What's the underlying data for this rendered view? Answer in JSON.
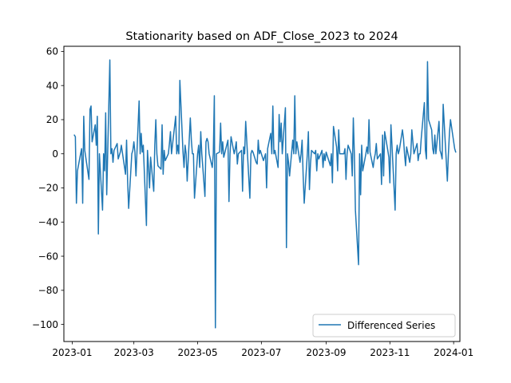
{
  "chart_data": {
    "type": "line",
    "title": "Stationarity based on ADF_Close_2023 to 2024",
    "xlabel": "",
    "ylabel": "",
    "x_range": [
      "2022-12-24",
      "2024-01-07"
    ],
    "ylim": [
      -110,
      63
    ],
    "x_ticks": [
      {
        "date": "2023-01-01",
        "label": "2023-01"
      },
      {
        "date": "2023-03-01",
        "label": "2023-03"
      },
      {
        "date": "2023-05-01",
        "label": "2023-05"
      },
      {
        "date": "2023-07-01",
        "label": "2023-07"
      },
      {
        "date": "2023-09-01",
        "label": "2023-09"
      },
      {
        "date": "2023-11-01",
        "label": "2023-11"
      },
      {
        "date": "2024-01-01",
        "label": "2024-01"
      }
    ],
    "y_ticks": [
      {
        "value": 60,
        "label": "60"
      },
      {
        "value": 40,
        "label": "40"
      },
      {
        "value": 20,
        "label": "20"
      },
      {
        "value": 0,
        "label": "0"
      },
      {
        "value": -20,
        "label": "−20"
      },
      {
        "value": -40,
        "label": "−40"
      },
      {
        "value": -60,
        "label": "−60"
      },
      {
        "value": -80,
        "label": "−80"
      },
      {
        "value": -100,
        "label": "−100"
      }
    ],
    "grid": false,
    "legend_position": "lower-right",
    "series": [
      {
        "name": "Differenced Series",
        "color": "#1f77b4",
        "points": [
          [
            "2023-01-03",
            11
          ],
          [
            "2023-01-04",
            10
          ],
          [
            "2023-01-05",
            -29
          ],
          [
            "2023-01-06",
            -10
          ],
          [
            "2023-01-09",
            0
          ],
          [
            "2023-01-10",
            3
          ],
          [
            "2023-01-11",
            -29
          ],
          [
            "2023-01-12",
            22
          ],
          [
            "2023-01-13",
            2
          ],
          [
            "2023-01-17",
            -15
          ],
          [
            "2023-01-18",
            26
          ],
          [
            "2023-01-19",
            28
          ],
          [
            "2023-01-20",
            7
          ],
          [
            "2023-01-23",
            17
          ],
          [
            "2023-01-24",
            5
          ],
          [
            "2023-01-25",
            22
          ],
          [
            "2023-01-26",
            -47
          ],
          [
            "2023-01-27",
            0
          ],
          [
            "2023-01-30",
            -33
          ],
          [
            "2023-01-31",
            0
          ],
          [
            "2023-02-01",
            -10
          ],
          [
            "2023-02-02",
            24
          ],
          [
            "2023-02-03",
            -24
          ],
          [
            "2023-02-06",
            55
          ],
          [
            "2023-02-07",
            0
          ],
          [
            "2023-02-08",
            3
          ],
          [
            "2023-02-09",
            -5
          ],
          [
            "2023-02-10",
            2
          ],
          [
            "2023-02-13",
            6
          ],
          [
            "2023-02-14",
            -3
          ],
          [
            "2023-02-15",
            -1
          ],
          [
            "2023-02-16",
            1
          ],
          [
            "2023-02-17",
            5
          ],
          [
            "2023-02-21",
            -12
          ],
          [
            "2023-02-22",
            8
          ],
          [
            "2023-02-23",
            -16
          ],
          [
            "2023-02-24",
            -32
          ],
          [
            "2023-02-27",
            0
          ],
          [
            "2023-02-28",
            2
          ],
          [
            "2023-03-01",
            7
          ],
          [
            "2023-03-02",
            1
          ],
          [
            "2023-03-03",
            -13
          ],
          [
            "2023-03-06",
            31
          ],
          [
            "2023-03-07",
            0
          ],
          [
            "2023-03-08",
            12
          ],
          [
            "2023-03-09",
            1
          ],
          [
            "2023-03-10",
            5
          ],
          [
            "2023-03-13",
            -42
          ],
          [
            "2023-03-14",
            2
          ],
          [
            "2023-03-15",
            -8
          ],
          [
            "2023-03-16",
            -20
          ],
          [
            "2023-03-17",
            -2
          ],
          [
            "2023-03-20",
            -22
          ],
          [
            "2023-03-21",
            5
          ],
          [
            "2023-03-22",
            20
          ],
          [
            "2023-03-23",
            0
          ],
          [
            "2023-03-24",
            -7
          ],
          [
            "2023-03-27",
            -9
          ],
          [
            "2023-03-28",
            17
          ],
          [
            "2023-03-29",
            -12
          ],
          [
            "2023-03-30",
            2
          ],
          [
            "2023-03-31",
            -4
          ],
          [
            "2023-04-03",
            0
          ],
          [
            "2023-04-04",
            6
          ],
          [
            "2023-04-05",
            13
          ],
          [
            "2023-04-06",
            0
          ],
          [
            "2023-04-10",
            22
          ],
          [
            "2023-04-11",
            0
          ],
          [
            "2023-04-12",
            5
          ],
          [
            "2023-04-13",
            0
          ],
          [
            "2023-04-14",
            43
          ],
          [
            "2023-04-17",
            1
          ],
          [
            "2023-04-18",
            -8
          ],
          [
            "2023-04-19",
            5
          ],
          [
            "2023-04-20",
            0
          ],
          [
            "2023-04-21",
            -16
          ],
          [
            "2023-04-24",
            21
          ],
          [
            "2023-04-25",
            8
          ],
          [
            "2023-04-26",
            0
          ],
          [
            "2023-04-27",
            0
          ],
          [
            "2023-04-28",
            -26
          ],
          [
            "2023-05-01",
            0
          ],
          [
            "2023-05-02",
            5
          ],
          [
            "2023-05-03",
            -8
          ],
          [
            "2023-05-04",
            13
          ],
          [
            "2023-05-05",
            0
          ],
          [
            "2023-05-08",
            -25
          ],
          [
            "2023-05-09",
            7
          ],
          [
            "2023-05-10",
            9
          ],
          [
            "2023-05-11",
            7
          ],
          [
            "2023-05-12",
            0
          ],
          [
            "2023-05-15",
            -8
          ],
          [
            "2023-05-16",
            0
          ],
          [
            "2023-05-17",
            34
          ],
          [
            "2023-05-18",
            -102
          ],
          [
            "2023-05-19",
            0
          ],
          [
            "2023-05-22",
            1
          ],
          [
            "2023-05-23",
            18
          ],
          [
            "2023-05-24",
            0
          ],
          [
            "2023-05-25",
            7
          ],
          [
            "2023-05-26",
            -2
          ],
          [
            "2023-05-30",
            8
          ],
          [
            "2023-05-31",
            -28
          ],
          [
            "2023-06-01",
            0
          ],
          [
            "2023-06-02",
            10
          ],
          [
            "2023-06-05",
            0
          ],
          [
            "2023-06-06",
            3
          ],
          [
            "2023-06-07",
            7
          ],
          [
            "2023-06-08",
            -6
          ],
          [
            "2023-06-09",
            0
          ],
          [
            "2023-06-12",
            2
          ],
          [
            "2023-06-13",
            -22
          ],
          [
            "2023-06-14",
            4
          ],
          [
            "2023-06-15",
            0
          ],
          [
            "2023-06-16",
            19
          ],
          [
            "2023-06-20",
            -26
          ],
          [
            "2023-06-21",
            0
          ],
          [
            "2023-06-22",
            2
          ],
          [
            "2023-06-23",
            1
          ],
          [
            "2023-06-26",
            -5
          ],
          [
            "2023-06-27",
            -6
          ],
          [
            "2023-06-28",
            8
          ],
          [
            "2023-06-29",
            0
          ],
          [
            "2023-06-30",
            2
          ],
          [
            "2023-07-03",
            -4
          ],
          [
            "2023-07-05",
            0
          ],
          [
            "2023-07-06",
            -20
          ],
          [
            "2023-07-07",
            3
          ],
          [
            "2023-07-10",
            12
          ],
          [
            "2023-07-11",
            0
          ],
          [
            "2023-07-12",
            28
          ],
          [
            "2023-07-13",
            0
          ],
          [
            "2023-07-14",
            2
          ],
          [
            "2023-07-17",
            -8
          ],
          [
            "2023-07-18",
            23
          ],
          [
            "2023-07-19",
            7
          ],
          [
            "2023-07-20",
            18
          ],
          [
            "2023-07-21",
            0
          ],
          [
            "2023-07-24",
            27
          ],
          [
            "2023-07-25",
            -55
          ],
          [
            "2023-07-26",
            0
          ],
          [
            "2023-07-27",
            -5
          ],
          [
            "2023-07-28",
            -13
          ],
          [
            "2023-07-31",
            8
          ],
          [
            "2023-08-01",
            0
          ],
          [
            "2023-08-02",
            34
          ],
          [
            "2023-08-03",
            0
          ],
          [
            "2023-08-04",
            7
          ],
          [
            "2023-08-07",
            -5
          ],
          [
            "2023-08-08",
            0
          ],
          [
            "2023-08-09",
            8
          ],
          [
            "2023-08-10",
            -13
          ],
          [
            "2023-08-11",
            -29
          ],
          [
            "2023-08-14",
            0
          ],
          [
            "2023-08-15",
            13
          ],
          [
            "2023-08-16",
            -21
          ],
          [
            "2023-08-17",
            -6
          ],
          [
            "2023-08-18",
            2
          ],
          [
            "2023-08-21",
            0
          ],
          [
            "2023-08-22",
            2
          ],
          [
            "2023-08-23",
            -10
          ],
          [
            "2023-08-24",
            0
          ],
          [
            "2023-08-25",
            -3
          ],
          [
            "2023-08-28",
            2
          ],
          [
            "2023-08-29",
            -8
          ],
          [
            "2023-08-30",
            0
          ],
          [
            "2023-08-31",
            -4
          ],
          [
            "2023-09-01",
            1
          ],
          [
            "2023-09-05",
            -7
          ],
          [
            "2023-09-06",
            0
          ],
          [
            "2023-09-07",
            -17
          ],
          [
            "2023-09-08",
            16
          ],
          [
            "2023-09-11",
            4
          ],
          [
            "2023-09-12",
            -10
          ],
          [
            "2023-09-13",
            14
          ],
          [
            "2023-09-14",
            0
          ],
          [
            "2023-09-15",
            0
          ],
          [
            "2023-09-18",
            0
          ],
          [
            "2023-09-19",
            3
          ],
          [
            "2023-09-20",
            -15
          ],
          [
            "2023-09-21",
            0
          ],
          [
            "2023-09-22",
            5
          ],
          [
            "2023-09-25",
            0
          ],
          [
            "2023-09-26",
            -13
          ],
          [
            "2023-09-27",
            21
          ],
          [
            "2023-09-28",
            0
          ],
          [
            "2023-09-29",
            -33
          ],
          [
            "2023-10-02",
            -65
          ],
          [
            "2023-10-03",
            0
          ],
          [
            "2023-10-04",
            -24
          ],
          [
            "2023-10-05",
            5
          ],
          [
            "2023-10-06",
            -10
          ],
          [
            "2023-10-09",
            0
          ],
          [
            "2023-10-10",
            4
          ],
          [
            "2023-10-11",
            0
          ],
          [
            "2023-10-12",
            20
          ],
          [
            "2023-10-13",
            1
          ],
          [
            "2023-10-16",
            -8
          ],
          [
            "2023-10-17",
            -3
          ],
          [
            "2023-10-18",
            0
          ],
          [
            "2023-10-19",
            6
          ],
          [
            "2023-10-20",
            -3
          ],
          [
            "2023-10-23",
            0
          ],
          [
            "2023-10-24",
            -18
          ],
          [
            "2023-10-25",
            11
          ],
          [
            "2023-10-26",
            -13
          ],
          [
            "2023-10-27",
            13
          ],
          [
            "2023-10-30",
            2
          ],
          [
            "2023-10-31",
            -2
          ],
          [
            "2023-11-01",
            -17
          ],
          [
            "2023-11-02",
            17
          ],
          [
            "2023-11-03",
            5
          ],
          [
            "2023-11-06",
            -33
          ],
          [
            "2023-11-07",
            0
          ],
          [
            "2023-11-08",
            5
          ],
          [
            "2023-11-09",
            0
          ],
          [
            "2023-11-10",
            2
          ],
          [
            "2023-11-13",
            14
          ],
          [
            "2023-11-14",
            9
          ],
          [
            "2023-11-15",
            0
          ],
          [
            "2023-11-16",
            -7
          ],
          [
            "2023-11-17",
            4
          ],
          [
            "2023-11-20",
            -5
          ],
          [
            "2023-11-21",
            0
          ],
          [
            "2023-11-22",
            14
          ],
          [
            "2023-11-24",
            0
          ],
          [
            "2023-11-27",
            6
          ],
          [
            "2023-11-28",
            -4
          ],
          [
            "2023-11-29",
            0
          ],
          [
            "2023-11-30",
            0
          ],
          [
            "2023-12-01",
            9
          ],
          [
            "2023-12-04",
            30
          ],
          [
            "2023-12-05",
            2
          ],
          [
            "2023-12-06",
            -3
          ],
          [
            "2023-12-07",
            54
          ],
          [
            "2023-12-08",
            20
          ],
          [
            "2023-12-11",
            14
          ],
          [
            "2023-12-12",
            3
          ],
          [
            "2023-12-13",
            0
          ],
          [
            "2023-12-14",
            11
          ],
          [
            "2023-12-15",
            0
          ],
          [
            "2023-12-18",
            19
          ],
          [
            "2023-12-19",
            2
          ],
          [
            "2023-12-20",
            0
          ],
          [
            "2023-12-21",
            -3
          ],
          [
            "2023-12-22",
            29
          ],
          [
            "2023-12-26",
            -16
          ],
          [
            "2023-12-27",
            0
          ],
          [
            "2023-12-28",
            12
          ],
          [
            "2023-12-29",
            20
          ],
          [
            "2024-01-02",
            3
          ],
          [
            "2024-01-03",
            1
          ]
        ]
      }
    ]
  }
}
